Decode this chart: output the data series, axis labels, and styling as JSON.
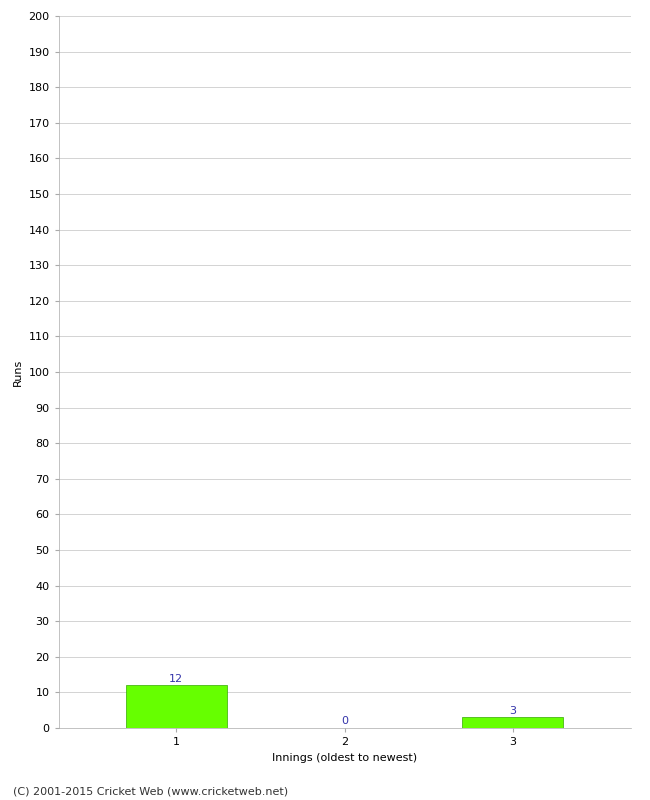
{
  "categories": [
    "1",
    "2",
    "3"
  ],
  "values": [
    12,
    0,
    3
  ],
  "bar_color": "#66ff00",
  "bar_edge_color": "#33aa00",
  "ylabel": "Runs",
  "xlabel": "Innings (oldest to newest)",
  "ylim": [
    0,
    200
  ],
  "ytick_step": 10,
  "label_color": "#3333aa",
  "footer": "(C) 2001-2015 Cricket Web (www.cricketweb.net)",
  "background_color": "#ffffff",
  "grid_color": "#cccccc",
  "tick_fontsize": 8,
  "label_fontsize": 8,
  "footer_fontsize": 8
}
